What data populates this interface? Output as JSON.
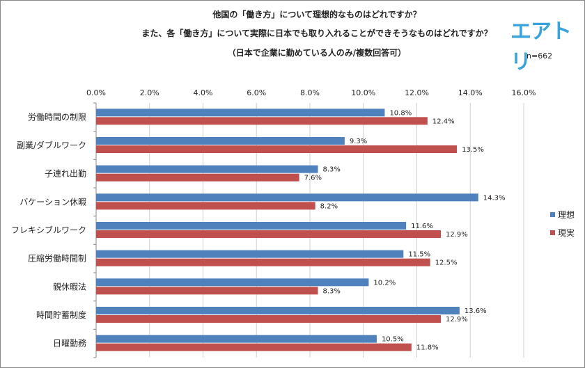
{
  "header": {
    "title_line1": "他国の「働き方」について理想的なものはどれですか？",
    "title_line2": "また、各「働き方」について実際に日本でも取り入れることができそうなものはどれですか？",
    "title_line3": "（日本で企業に勤めている人のみ/複数回答可）",
    "logo": "エアトリ",
    "sample_size": "n=662"
  },
  "chart_data": {
    "type": "bar",
    "orientation": "horizontal",
    "categories": [
      "労働時間の制限",
      "副業/ダブルワーク",
      "子連れ出勤",
      "バケーション休暇",
      "フレキシブルワーク",
      "圧縮労働時間制",
      "親休暇法",
      "時間貯蓄制度",
      "日曜勤務"
    ],
    "series": [
      {
        "name": "理想",
        "color": "#4f81bd",
        "values": [
          10.8,
          9.3,
          8.3,
          14.3,
          11.6,
          11.5,
          10.2,
          13.6,
          10.5
        ]
      },
      {
        "name": "現実",
        "color": "#c0504d",
        "values": [
          12.4,
          13.5,
          7.6,
          8.2,
          12.9,
          12.5,
          8.3,
          12.9,
          11.8
        ]
      }
    ],
    "xlim": [
      0,
      16
    ],
    "ticks": [
      "0.0%",
      "2.0%",
      "4.0%",
      "6.0%",
      "8.0%",
      "10.0%",
      "12.0%",
      "14.0%",
      "16.0%"
    ],
    "unit": "%",
    "grid": true,
    "legend_position": "right"
  }
}
